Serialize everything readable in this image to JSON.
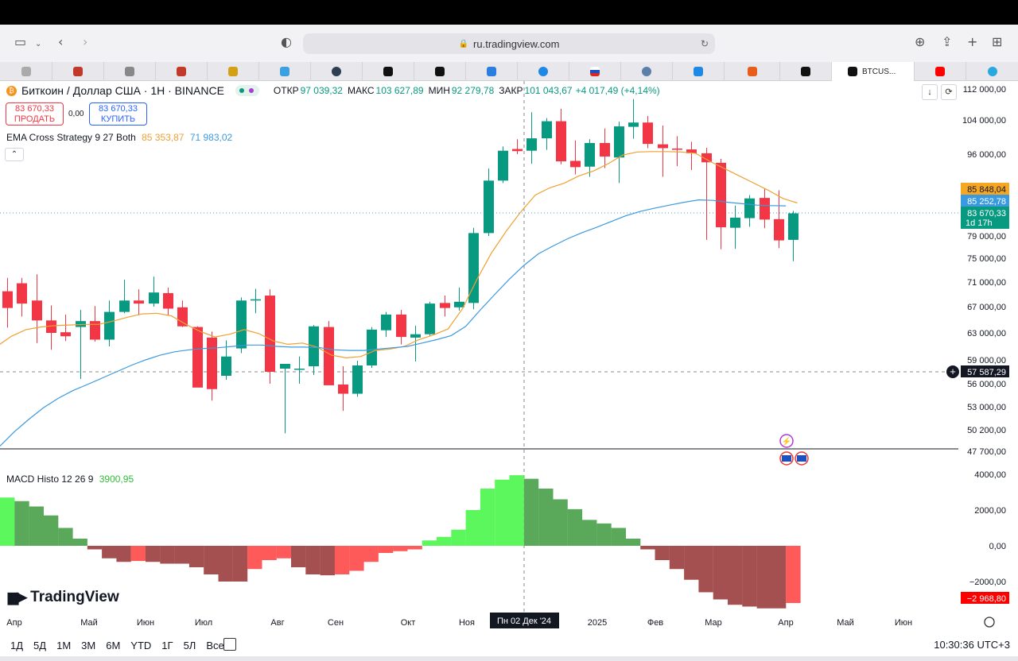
{
  "browser": {
    "url": "ru.tradingview.com"
  },
  "tabs": {
    "active_label": "BTCUS..."
  },
  "symbol": {
    "title": "Биткоин / Доллар США · 1Н · BINANCE",
    "open_label": "ОТКР",
    "open": "97 039,32",
    "high_label": "МАКС",
    "high": "103 627,89",
    "low_label": "МИН",
    "low": "92 279,78",
    "close_label": "ЗАКР",
    "close": "101 043,67",
    "change": "+4 017,49 (+4,14%)"
  },
  "trade": {
    "sell_price": "83 670,33",
    "sell_label": "ПРОДАТЬ",
    "spread": "0,00",
    "buy_price": "83 670,33",
    "buy_label": "КУПИТЬ"
  },
  "indicators": {
    "ema_name": "EMA Cross Strategy 9 27 Both",
    "ema_fast": "85 353,87",
    "ema_slow": "71 983,02",
    "macd_name": "MACD Histo 12 26 9",
    "macd_value": "3900,95"
  },
  "price_axis": {
    "ticks": [
      "112 000,00",
      "104 000,00",
      "96 000,00",
      "79 000,00",
      "75 000,00",
      "71 000,00",
      "67 000,00",
      "63 000,00",
      "59 000,00",
      "56 000,00",
      "53 000,00",
      "50 200,00",
      "47 700,00"
    ],
    "badge_ema_fast": "85 848,04",
    "badge_ema_slow": "85 252,78",
    "badge_last": "83 670,33",
    "badge_countdown": "1d 17h",
    "badge_crosshair": "57 587,29"
  },
  "macd_axis": {
    "ticks": [
      "4000,00",
      "2000,00",
      "0,00",
      "−2000,00"
    ],
    "badge_last": "−2 968,80"
  },
  "time_axis": {
    "labels": [
      "Апр",
      "Май",
      "Июн",
      "Июл",
      "Авг",
      "Сен",
      "Окт",
      "Ноя",
      "2025",
      "Фев",
      "Мар",
      "Апр",
      "Май",
      "Июн"
    ],
    "crosshair": "Пн 02 Дек '24"
  },
  "branding": {
    "logo": "TradingView"
  },
  "ranges": [
    "1Д",
    "5Д",
    "1М",
    "3М",
    "6М",
    "YTD",
    "1Г",
    "5Л",
    "Все"
  ],
  "clock": "10:30:36 UTC+3",
  "colors": {
    "up": "#089981",
    "down": "#f23645",
    "ema_fast": "#f0a030",
    "ema_slow": "#3a9ae0",
    "macd_bright_up": "#5cf75c",
    "macd_dark_up": "#5aa95a",
    "macd_bright_down": "#ff5a5a",
    "macd_dark_down": "#a55050"
  }
}
